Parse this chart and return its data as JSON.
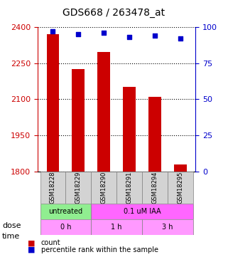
{
  "title": "GDS668 / 263478_at",
  "samples": [
    "GSM18228",
    "GSM18229",
    "GSM18290",
    "GSM18291",
    "GSM18294",
    "GSM18295"
  ],
  "bar_values": [
    2370,
    2225,
    2295,
    2150,
    2110,
    1830
  ],
  "percentile_values": [
    97,
    95,
    96,
    93,
    94,
    92
  ],
  "bar_color": "#cc0000",
  "percentile_color": "#0000cc",
  "ylim_left": [
    1800,
    2400
  ],
  "ylim_right": [
    0,
    100
  ],
  "yticks_left": [
    1800,
    1950,
    2100,
    2250,
    2400
  ],
  "yticks_right": [
    0,
    25,
    50,
    75,
    100
  ],
  "dose_labels": [
    {
      "label": "untreated",
      "start": 0,
      "end": 2,
      "color": "#90ee90"
    },
    {
      "label": "0.1 uM IAA",
      "start": 2,
      "end": 6,
      "color": "#ff66ff"
    }
  ],
  "time_labels": [
    {
      "label": "0 h",
      "start": 0,
      "end": 2,
      "color": "#ff99ff"
    },
    {
      "label": "1 h",
      "start": 2,
      "end": 4,
      "color": "#ff99ff"
    },
    {
      "label": "3 h",
      "start": 4,
      "end": 6,
      "color": "#ff99ff"
    }
  ],
  "dose_row_label": "dose",
  "time_row_label": "time",
  "legend_count_label": "count",
  "legend_percentile_label": "percentile rank within the sample",
  "xlabel_color": "#000000",
  "left_axis_color": "#cc0000",
  "right_axis_color": "#0000cc",
  "bar_width": 0.5,
  "figsize": [
    3.21,
    3.75
  ],
  "dpi": 100
}
